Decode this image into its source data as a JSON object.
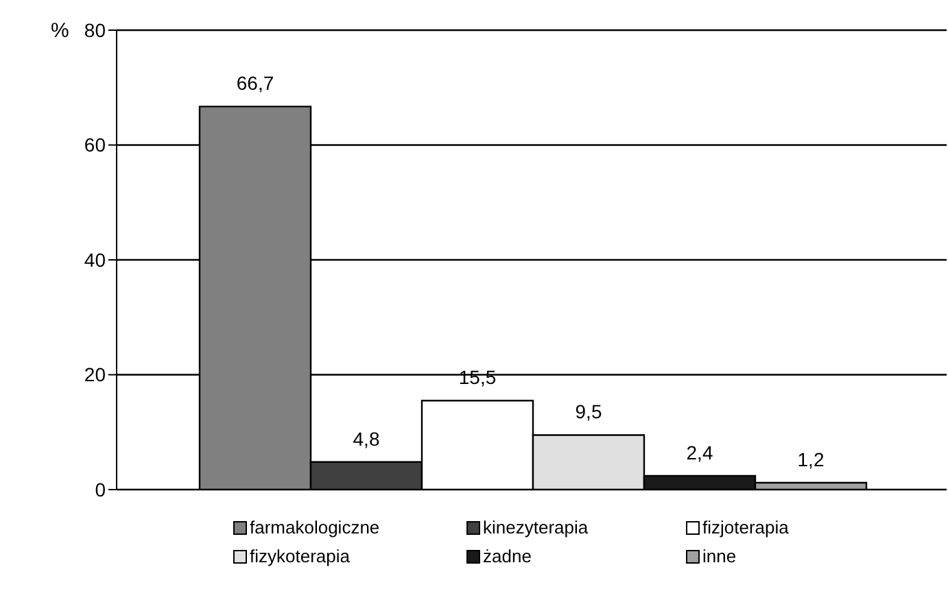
{
  "chart_data": {
    "type": "bar",
    "ylabel": "%",
    "categories": [
      null
    ],
    "series": [
      {
        "name": "farmakologiczne",
        "color": "#808080",
        "values": [
          66.7
        ],
        "value_labels": [
          "66,7"
        ]
      },
      {
        "name": "kinezyterapia",
        "color": "#404040",
        "values": [
          4.8
        ],
        "value_labels": [
          "4,8"
        ]
      },
      {
        "name": "fizjoterapia",
        "color": "#ffffff",
        "values": [
          15.5
        ],
        "value_labels": [
          "15,5"
        ]
      },
      {
        "name": "fizykoterapia",
        "color": "#e0e0e0",
        "values": [
          9.5
        ],
        "value_labels": [
          "9,5"
        ]
      },
      {
        "name": "żadne",
        "color": "#1a1a1a",
        "values": [
          2.4
        ],
        "value_labels": [
          "2,4"
        ]
      },
      {
        "name": "inne",
        "color": "#a0a0a0",
        "values": [
          1.2
        ],
        "value_labels": [
          "1,2"
        ]
      }
    ],
    "ylim": [
      0,
      80
    ],
    "yticks": [
      0,
      20,
      40,
      60,
      80
    ],
    "grid": "y",
    "legend": "bottom"
  }
}
